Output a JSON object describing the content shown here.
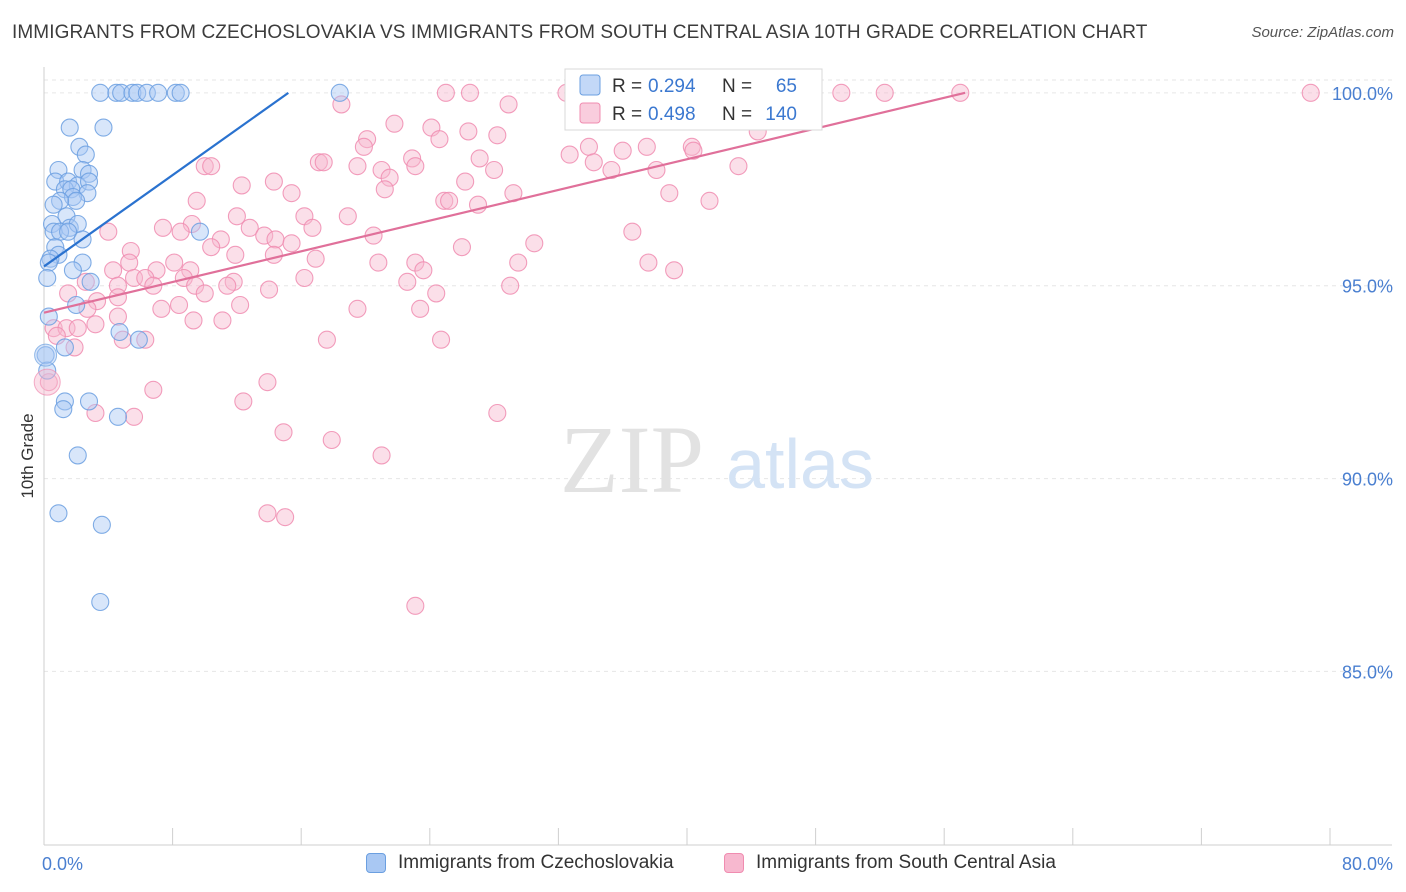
{
  "header": {
    "title": "IMMIGRANTS FROM CZECHOSLOVAKIA VS IMMIGRANTS FROM SOUTH CENTRAL ASIA 10TH GRADE CORRELATION CHART",
    "source": "Source: ZipAtlas.com"
  },
  "watermark": {
    "zip": "ZIP",
    "atlas": "atlas"
  },
  "chart_data": {
    "type": "scatter",
    "title": "IMMIGRANTS FROM CZECHOSLOVAKIA VS IMMIGRANTS FROM SOUTH CENTRAL ASIA 10TH GRADE CORRELATION CHART",
    "xlabel": "",
    "ylabel": "10th Grade",
    "xlim": [
      0,
      80
    ],
    "ylim": [
      80.5,
      100.8
    ],
    "x_tick_labels": [
      "0.0%",
      "80.0%"
    ],
    "y_ticks": [
      85,
      90,
      95,
      100
    ],
    "y_tick_labels": [
      "85.0%",
      "90.0%",
      "95.0%",
      "100.0%"
    ],
    "grid": true,
    "legend_position": "top-center",
    "series": [
      {
        "name": "Immigrants from Czechoslovakia",
        "color": "#6b9fe0",
        "fill": "#a9c8f3",
        "line_color": "#2a72cf",
        "R": "0.294",
        "N": "65",
        "trend": {
          "x": [
            0,
            15.2
          ],
          "y": [
            95.5,
            100.0
          ]
        },
        "points": [
          [
            3.5,
            100
          ],
          [
            4.5,
            100
          ],
          [
            4.8,
            100
          ],
          [
            5.5,
            100
          ],
          [
            5.8,
            100
          ],
          [
            6.4,
            100
          ],
          [
            7.1,
            100
          ],
          [
            8.2,
            100
          ],
          [
            8.5,
            100
          ],
          [
            18.4,
            100
          ],
          [
            1.6,
            99.1
          ],
          [
            3.7,
            99.1
          ],
          [
            2.2,
            98.6
          ],
          [
            2.6,
            98.4
          ],
          [
            0.9,
            98.0
          ],
          [
            2.4,
            98.0
          ],
          [
            2.8,
            97.9
          ],
          [
            0.7,
            97.7
          ],
          [
            1.5,
            97.7
          ],
          [
            2.1,
            97.6
          ],
          [
            2.8,
            97.7
          ],
          [
            1.3,
            97.5
          ],
          [
            1.7,
            97.5
          ],
          [
            2.7,
            97.4
          ],
          [
            1.8,
            97.3
          ],
          [
            2.0,
            97.2
          ],
          [
            1.0,
            97.2
          ],
          [
            0.6,
            97.1
          ],
          [
            1.4,
            96.8
          ],
          [
            0.5,
            96.6
          ],
          [
            1.6,
            96.5
          ],
          [
            2.1,
            96.6
          ],
          [
            0.6,
            96.4
          ],
          [
            1.0,
            96.4
          ],
          [
            1.5,
            96.4
          ],
          [
            2.4,
            96.2
          ],
          [
            0.7,
            96.0
          ],
          [
            0.9,
            95.8
          ],
          [
            0.4,
            95.7
          ],
          [
            0.3,
            95.6
          ],
          [
            2.4,
            95.6
          ],
          [
            1.8,
            95.4
          ],
          [
            0.2,
            95.2
          ],
          [
            2.9,
            95.1
          ],
          [
            9.7,
            96.4
          ],
          [
            0.3,
            94.2
          ],
          [
            2.0,
            94.5
          ],
          [
            4.7,
            93.8
          ],
          [
            5.9,
            93.6
          ],
          [
            1.3,
            93.4
          ],
          [
            0.1,
            93.2
          ],
          [
            1.3,
            92.0
          ],
          [
            2.8,
            92.0
          ],
          [
            1.2,
            91.8
          ],
          [
            4.6,
            91.6
          ],
          [
            2.1,
            90.6
          ],
          [
            0.9,
            89.1
          ],
          [
            3.6,
            88.8
          ],
          [
            3.5,
            86.8
          ],
          [
            0.2,
            92.8
          ]
        ]
      },
      {
        "name": "Immigrants from South Central Asia",
        "color": "#f08cb0",
        "fill": "#f7b8cf",
        "line_color": "#e0709a",
        "R": "0.498",
        "N": "140",
        "trend": {
          "x": [
            0,
            57.3
          ],
          "y": [
            94.3,
            100.0
          ]
        },
        "points": [
          [
            25,
            100
          ],
          [
            26.5,
            100
          ],
          [
            32.5,
            100
          ],
          [
            36.8,
            100
          ],
          [
            42,
            100
          ],
          [
            49.6,
            100
          ],
          [
            52.3,
            100
          ],
          [
            57,
            100
          ],
          [
            78.8,
            100
          ],
          [
            40.9,
            100
          ],
          [
            18.5,
            99.7
          ],
          [
            28.9,
            99.7
          ],
          [
            33.6,
            99.6
          ],
          [
            38,
            99.9
          ],
          [
            41.9,
            99.5
          ],
          [
            37.5,
            99.4
          ],
          [
            21.8,
            99.2
          ],
          [
            24.1,
            99.1
          ],
          [
            26.4,
            99.0
          ],
          [
            20.1,
            98.8
          ],
          [
            19.9,
            98.6
          ],
          [
            24.6,
            98.8
          ],
          [
            28.2,
            98.9
          ],
          [
            33.9,
            98.6
          ],
          [
            37.5,
            98.6
          ],
          [
            40.3,
            98.6
          ],
          [
            32.7,
            98.4
          ],
          [
            36.0,
            98.5
          ],
          [
            40.4,
            98.5
          ],
          [
            22.9,
            98.3
          ],
          [
            27.1,
            98.3
          ],
          [
            17.1,
            98.2
          ],
          [
            17.4,
            98.2
          ],
          [
            19.5,
            98.1
          ],
          [
            10.0,
            98.1
          ],
          [
            10.4,
            98.1
          ],
          [
            21.0,
            98.0
          ],
          [
            23.1,
            98.1
          ],
          [
            35.3,
            98.0
          ],
          [
            38.1,
            98.0
          ],
          [
            43.2,
            98.1
          ],
          [
            21.5,
            97.8
          ],
          [
            14.3,
            97.7
          ],
          [
            26.2,
            97.7
          ],
          [
            15.4,
            97.4
          ],
          [
            21.2,
            97.5
          ],
          [
            29.2,
            97.4
          ],
          [
            38.9,
            97.4
          ],
          [
            12.3,
            97.6
          ],
          [
            41.4,
            97.2
          ],
          [
            24.9,
            97.2
          ],
          [
            25.2,
            97.2
          ],
          [
            9.5,
            97.2
          ],
          [
            27.0,
            97.1
          ],
          [
            12.0,
            96.8
          ],
          [
            16.2,
            96.8
          ],
          [
            18.9,
            96.8
          ],
          [
            7.4,
            96.5
          ],
          [
            9.2,
            96.6
          ],
          [
            12.8,
            96.5
          ],
          [
            16.7,
            96.5
          ],
          [
            4.0,
            96.4
          ],
          [
            8.5,
            96.4
          ],
          [
            11.0,
            96.2
          ],
          [
            13.7,
            96.3
          ],
          [
            14.4,
            96.2
          ],
          [
            15.4,
            96.1
          ],
          [
            20.5,
            96.3
          ],
          [
            10.4,
            96.0
          ],
          [
            26.0,
            96.0
          ],
          [
            5.4,
            95.9
          ],
          [
            11.9,
            95.8
          ],
          [
            14.3,
            95.8
          ],
          [
            16.9,
            95.7
          ],
          [
            5.3,
            95.6
          ],
          [
            8.1,
            95.6
          ],
          [
            20.8,
            95.6
          ],
          [
            23.1,
            95.6
          ],
          [
            29.5,
            95.6
          ],
          [
            37.6,
            95.6
          ],
          [
            4.3,
            95.4
          ],
          [
            7.0,
            95.4
          ],
          [
            9.1,
            95.4
          ],
          [
            23.6,
            95.4
          ],
          [
            39.2,
            95.4
          ],
          [
            2.6,
            95.1
          ],
          [
            4.6,
            95.0
          ],
          [
            5.6,
            95.2
          ],
          [
            6.3,
            95.2
          ],
          [
            8.7,
            95.2
          ],
          [
            11.8,
            95.1
          ],
          [
            16.2,
            95.2
          ],
          [
            22.6,
            95.1
          ],
          [
            6.8,
            95.0
          ],
          [
            9.4,
            95.0
          ],
          [
            11.4,
            95.0
          ],
          [
            14.0,
            94.9
          ],
          [
            10.0,
            94.8
          ],
          [
            24.4,
            94.8
          ],
          [
            1.5,
            94.8
          ],
          [
            3.3,
            94.6
          ],
          [
            8.4,
            94.5
          ],
          [
            4.6,
            94.7
          ],
          [
            12.2,
            94.5
          ],
          [
            7.3,
            94.4
          ],
          [
            19.5,
            94.4
          ],
          [
            2.7,
            94.4
          ],
          [
            4.6,
            94.2
          ],
          [
            9.3,
            94.1
          ],
          [
            11.1,
            94.1
          ],
          [
            3.2,
            94.0
          ],
          [
            0.6,
            93.9
          ],
          [
            1.4,
            93.9
          ],
          [
            2.1,
            93.9
          ],
          [
            0.8,
            93.7
          ],
          [
            4.9,
            93.6
          ],
          [
            17.6,
            93.6
          ],
          [
            24.7,
            93.6
          ],
          [
            6.3,
            93.6
          ],
          [
            1.9,
            93.4
          ],
          [
            13.9,
            92.5
          ],
          [
            6.8,
            92.3
          ],
          [
            12.4,
            92.0
          ],
          [
            3.2,
            91.7
          ],
          [
            5.6,
            91.6
          ],
          [
            28.2,
            91.7
          ],
          [
            14.9,
            91.2
          ],
          [
            17.9,
            91.0
          ],
          [
            21.0,
            90.6
          ],
          [
            13.9,
            89.1
          ],
          [
            15.0,
            89.0
          ],
          [
            23.1,
            86.7
          ],
          [
            0.3,
            92.5
          ],
          [
            44.4,
            99.0
          ],
          [
            28.0,
            98.0
          ],
          [
            34.2,
            98.2
          ],
          [
            30.5,
            96.1
          ],
          [
            36.6,
            96.4
          ],
          [
            29.0,
            95.0
          ],
          [
            23.4,
            94.4
          ]
        ]
      }
    ]
  }
}
